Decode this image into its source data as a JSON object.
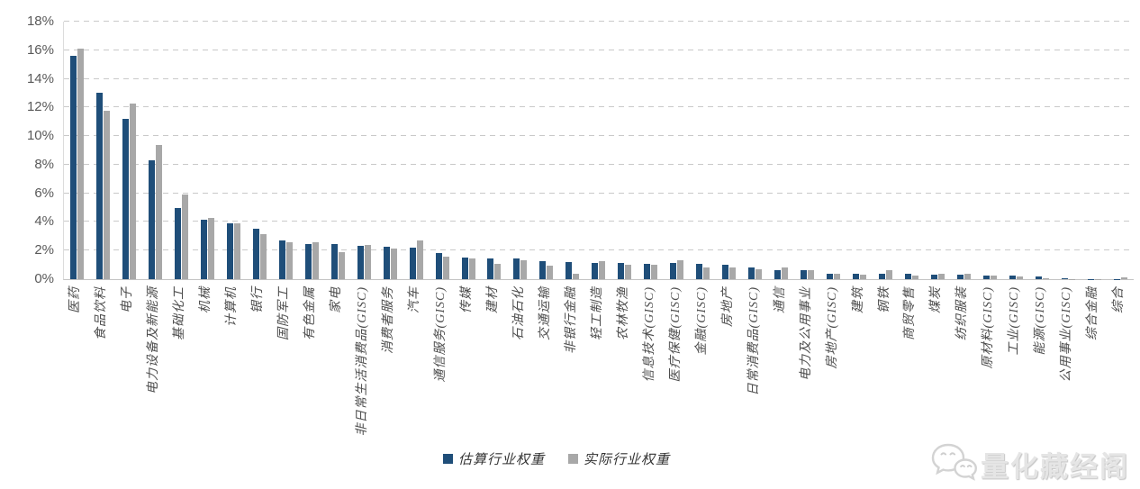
{
  "chart_data": {
    "type": "bar",
    "title": "",
    "xlabel": "",
    "ylabel": "",
    "ylim": [
      0,
      18
    ],
    "yticks": [
      0,
      2,
      4,
      6,
      8,
      10,
      12,
      14,
      16,
      18
    ],
    "ytick_suffix": "%",
    "grid": "horizontal-dashed",
    "legend_position": "bottom-center",
    "categories": [
      "医药",
      "食品饮料",
      "电子",
      "电力设备及新能源",
      "基础化工",
      "机械",
      "计算机",
      "银行",
      "国防军工",
      "有色金属",
      "家电",
      "非日常生活消费品(GISC)",
      "消费者服务",
      "汽车",
      "通信服务(GISC)",
      "传媒",
      "建材",
      "石油石化",
      "交通运输",
      "非银行金融",
      "轻工制造",
      "农林牧渔",
      "信息技术(GISC)",
      "医疗保健(GISC)",
      "金融(GISC)",
      "房地产",
      "日常消费品(GISC)",
      "通信",
      "电力及公用事业",
      "房地产(GISC)",
      "建筑",
      "钢铁",
      "商贸零售",
      "煤炭",
      "纺织服装",
      "原材料(GISC)",
      "工业(GISC)",
      "能源(GISC)",
      "公用事业(GISC)",
      "综合金融",
      "综合"
    ],
    "series": [
      {
        "key": "estimated",
        "name": "估算行业权重",
        "color": "#1f4e79",
        "values": [
          15.6,
          13.0,
          11.2,
          8.3,
          5.0,
          4.15,
          3.9,
          3.55,
          2.7,
          2.45,
          2.45,
          2.3,
          2.25,
          2.2,
          1.85,
          1.5,
          1.45,
          1.45,
          1.25,
          1.2,
          1.15,
          1.15,
          1.1,
          1.15,
          1.1,
          1.0,
          0.8,
          0.65,
          0.65,
          0.4,
          0.4,
          0.35,
          0.35,
          0.3,
          0.3,
          0.27,
          0.27,
          0.2,
          0.04,
          0.02,
          0.02
        ]
      },
      {
        "key": "actual",
        "name": "实际行业权重",
        "color": "#a8a8a8",
        "values": [
          16.1,
          11.8,
          12.3,
          9.4,
          5.9,
          4.25,
          3.9,
          3.15,
          2.6,
          2.6,
          1.9,
          2.4,
          2.15,
          2.7,
          1.6,
          1.45,
          1.1,
          1.3,
          0.95,
          0.4,
          1.25,
          1.0,
          1.0,
          1.35,
          0.8,
          0.85,
          0.7,
          0.8,
          0.6,
          0.35,
          0.3,
          0.65,
          0.25,
          0.35,
          0.4,
          0.23,
          0.22,
          0.08,
          0.03,
          0.02,
          0.15
        ]
      }
    ]
  },
  "watermark": {
    "text": "量化藏经阁",
    "icon": "wechat-icon"
  }
}
